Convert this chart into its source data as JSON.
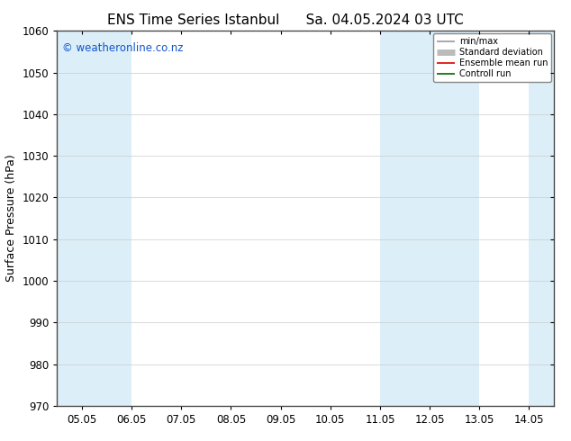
{
  "title_left": "ENS Time Series Istanbul",
  "title_right": "Sa. 04.05.2024 03 UTC",
  "ylabel": "Surface Pressure (hPa)",
  "ylim": [
    970,
    1060
  ],
  "yticks": [
    970,
    980,
    990,
    1000,
    1010,
    1020,
    1030,
    1040,
    1050,
    1060
  ],
  "xtick_labels": [
    "05.05",
    "06.05",
    "07.05",
    "08.05",
    "09.05",
    "10.05",
    "11.05",
    "12.05",
    "13.05",
    "14.05"
  ],
  "xtick_positions": [
    0,
    1,
    2,
    3,
    4,
    5,
    6,
    7,
    8,
    9
  ],
  "xlim": [
    -0.5,
    9.5
  ],
  "watermark": "© weatheronline.co.nz",
  "shaded_bands": [
    {
      "xmin": -0.5,
      "xmax": 0.5
    },
    {
      "xmin": 0.5,
      "xmax": 1.0
    },
    {
      "xmin": 6.0,
      "xmax": 7.0
    },
    {
      "xmin": 7.0,
      "xmax": 8.0
    },
    {
      "xmin": 9.0,
      "xmax": 9.5
    }
  ],
  "shade_color": "#dceef8",
  "background_color": "#ffffff",
  "legend_items": [
    {
      "label": "min/max",
      "color": "#999999",
      "lw": 1.2
    },
    {
      "label": "Standard deviation",
      "color": "#bbbbbb",
      "lw": 5
    },
    {
      "label": "Ensemble mean run",
      "color": "#dd0000",
      "lw": 1.2
    },
    {
      "label": "Controll run",
      "color": "#006600",
      "lw": 1.2
    }
  ],
  "title_fontsize": 11,
  "tick_fontsize": 8.5,
  "ylabel_fontsize": 9,
  "watermark_color": "#1155cc",
  "watermark_fontsize": 8.5
}
